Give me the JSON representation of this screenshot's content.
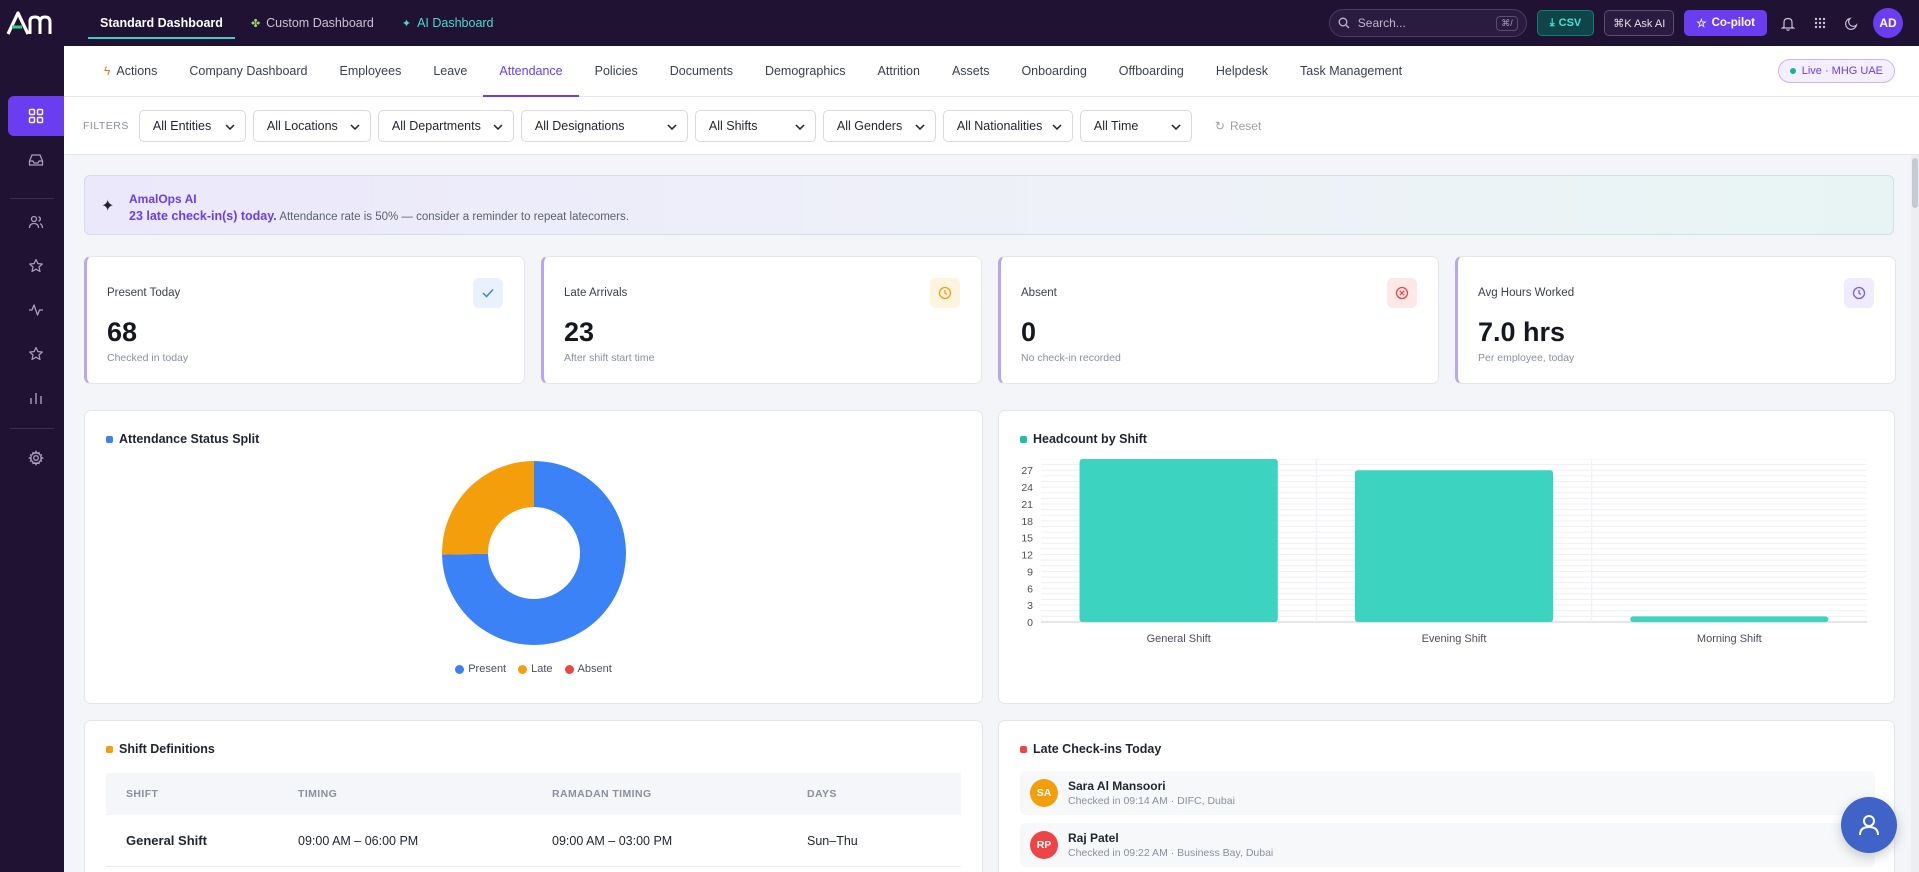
{
  "app": {
    "logo_text": "Am"
  },
  "topbar": {
    "tabs": [
      {
        "label": "Standard Dashboard",
        "icon": ""
      },
      {
        "label": "Custom Dashboard",
        "icon": "puzzle-icon"
      },
      {
        "label": "AI Dashboard",
        "icon": "sparkle-icon"
      }
    ],
    "search": {
      "placeholder": "Search...",
      "shortcut": "⌘/"
    },
    "csv_label": "CSV",
    "ask_ai_label": "⌘K Ask AI",
    "copilot_label": "Co-pilot",
    "user_initials": "AD"
  },
  "subnav": {
    "items": [
      "Actions",
      "Company Dashboard",
      "Employees",
      "Leave",
      "Attendance",
      "Policies",
      "Documents",
      "Demographics",
      "Attrition",
      "Assets",
      "Onboarding",
      "Offboarding",
      "Helpdesk",
      "Task Management"
    ],
    "active": "Attendance",
    "live_badge": "Live · MHG UAE"
  },
  "filters": {
    "label": "FILTERS",
    "selects": [
      "All Entities",
      "All Locations",
      "All Departments",
      "All Designations",
      "All Shifts",
      "All Genders",
      "All Nationalities",
      "All Time"
    ],
    "reset_label": "Reset"
  },
  "ai_banner": {
    "title": "AmalOps AI",
    "highlight": "23 late check-in(s) today.",
    "message": "Attendance rate is 50% — consider a reminder to repeat latecomers."
  },
  "kpis": [
    {
      "label": "Present Today",
      "value": "68",
      "sub": "Checked in today",
      "icon": "check-icon",
      "color": "#3b82f6",
      "bg": "#eaf1fe"
    },
    {
      "label": "Late Arrivals",
      "value": "23",
      "sub": "After shift start time",
      "icon": "clock-icon",
      "color": "#f59e0b",
      "bg": "#fff4e0"
    },
    {
      "label": "Absent",
      "value": "0",
      "sub": "No check-in recorded",
      "icon": "x-circle-icon",
      "color": "#ef4444",
      "bg": "#fde8e8"
    },
    {
      "label": "Avg Hours Worked",
      "value": "7.0 hrs",
      "sub": "Per employee, today",
      "icon": "clock-icon",
      "color": "#7c5cf0",
      "bg": "#f0ebfe"
    }
  ],
  "status_split": {
    "title": "Attendance Status Split",
    "title_color": "#3b82f6",
    "legend": [
      "Present",
      "Late",
      "Absent"
    ]
  },
  "headcount": {
    "title": "Headcount by Shift",
    "title_color": "#1fbfa8"
  },
  "shift_definitions": {
    "title": "Shift Definitions",
    "title_color": "#f59e0b",
    "columns": [
      "SHIFT",
      "TIMING",
      "RAMADAN TIMING",
      "DAYS"
    ],
    "rows": [
      [
        "General Shift",
        "09:00 AM – 06:00 PM",
        "09:00 AM – 03:00 PM",
        "Sun–Thu"
      ]
    ]
  },
  "late_checkins": {
    "title": "Late Check-ins Today",
    "title_color": "#ef4444",
    "items": [
      {
        "initials": "SA",
        "name": "Sara Al Mansoori",
        "meta": "Checked in 09:14 AM · DIFC, Dubai",
        "color": "#f59e0b"
      },
      {
        "initials": "RP",
        "name": "Raj Patel",
        "meta": "Checked in 09:22 AM · Business Bay, Dubai",
        "color": "#ef4444"
      }
    ]
  },
  "chart_data": [
    {
      "type": "pie",
      "title": "Attendance Status Split",
      "categories": [
        "Present",
        "Late",
        "Absent"
      ],
      "values": [
        68,
        23,
        0
      ],
      "colors": [
        "#3b82f6",
        "#f59e0b",
        "#ef4444"
      ],
      "donut": true,
      "legend": "bottom"
    },
    {
      "type": "bar",
      "title": "Headcount by Shift",
      "categories": [
        "General Shift",
        "Evening Shift",
        "Morning Shift"
      ],
      "values": [
        29,
        27,
        1
      ],
      "color": "#3dd3c1",
      "ylim": [
        0,
        29
      ],
      "yticks": [
        0,
        3,
        6,
        9,
        12,
        15,
        18,
        21,
        24,
        27
      ],
      "grid": true
    }
  ]
}
